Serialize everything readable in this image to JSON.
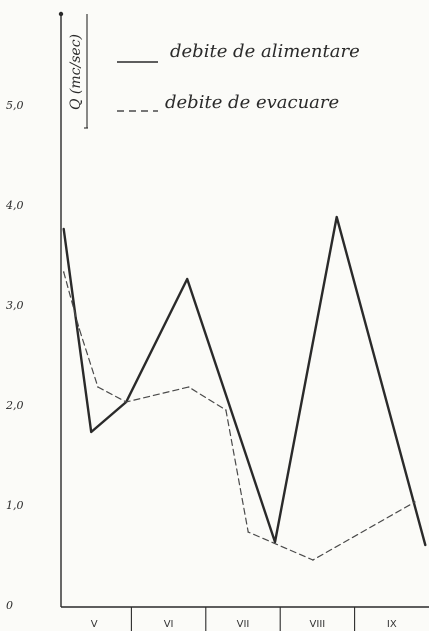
{
  "chart_data": {
    "type": "line",
    "title": "",
    "xlabel": "",
    "ylabel": "Q (mc/sec)",
    "ylim": [
      0,
      6
    ],
    "yticks": [
      "0",
      "1,0",
      "2,0",
      "3,0",
      "4,0",
      "5,0"
    ],
    "xlim": [
      0,
      5
    ],
    "categories": [
      "V",
      "VI",
      "VII",
      "VIII",
      "IX"
    ],
    "grid": false,
    "legend_position": "top",
    "series": [
      {
        "name": "debite de alimentare",
        "style": "solid",
        "color": "#2a2a2a",
        "x": [
          0.09,
          0.46,
          0.93,
          1.75,
          2.55,
          2.93,
          3.76,
          4.95
        ],
        "y": [
          3.78,
          1.75,
          2.05,
          3.28,
          1.5,
          0.65,
          3.9,
          0.62
        ]
      },
      {
        "name": "debite de evacuare",
        "style": "dashed",
        "color": "#4a4a4a",
        "x": [
          0.09,
          0.3,
          0.55,
          0.93,
          1.77,
          2.27,
          2.57,
          3.44,
          4.81
        ],
        "y": [
          3.35,
          2.78,
          2.2,
          2.05,
          2.2,
          1.97,
          0.75,
          0.47,
          1.05
        ]
      }
    ]
  }
}
